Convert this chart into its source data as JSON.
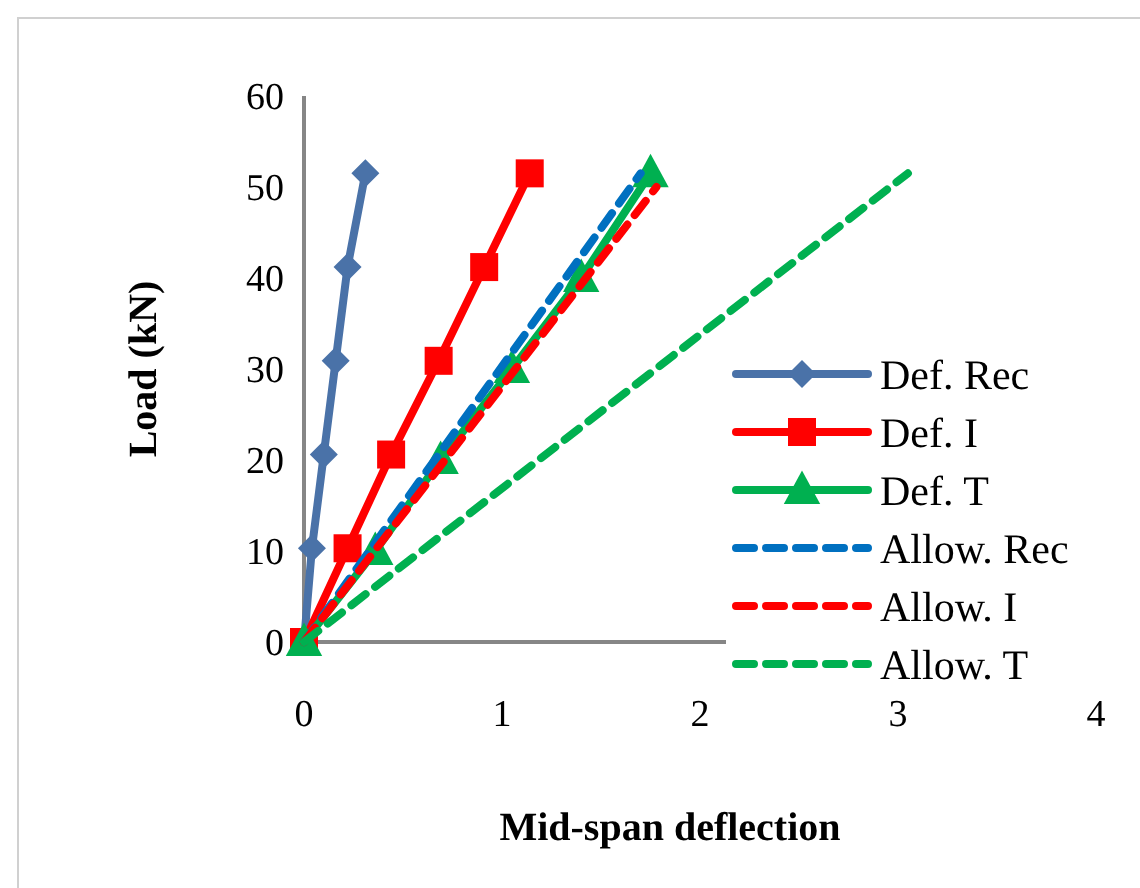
{
  "chart_data": {
    "type": "line",
    "xlabel": "Mid-span deflection",
    "ylabel": "Load (kN)",
    "xlim": [
      0,
      4
    ],
    "xticks": [
      0,
      1,
      2,
      3,
      4
    ],
    "ylim": [
      0,
      60
    ],
    "yticks": [
      0,
      10,
      20,
      30,
      40,
      50,
      60
    ],
    "grid": false,
    "legend": "right",
    "series": [
      {
        "name": "Def. Rec",
        "color": "#4a72a8",
        "marker": "diamond",
        "line_style": "solid",
        "x": [
          0,
          0.04,
          0.1,
          0.16,
          0.22,
          0.31
        ],
        "values": [
          0,
          10.3,
          20.6,
          30.9,
          41.2,
          51.5
        ]
      },
      {
        "name": "Def. I",
        "color": "#ff0000",
        "marker": "square",
        "line_style": "solid",
        "x": [
          0,
          0.22,
          0.44,
          0.68,
          0.91,
          1.14
        ],
        "values": [
          0,
          10.3,
          20.6,
          30.9,
          41.2,
          51.5
        ]
      },
      {
        "name": "Def. T",
        "color": "#00b050",
        "marker": "triangle",
        "line_style": "solid",
        "x": [
          0,
          0.36,
          0.69,
          1.05,
          1.4,
          1.75
        ],
        "values": [
          0,
          10,
          20,
          30,
          40,
          51.5
        ]
      },
      {
        "name": "Allow. Rec",
        "color": "#0070c0",
        "marker": "none",
        "line_style": "dashed",
        "x": [
          0,
          1.7
        ],
        "values": [
          0,
          51.5
        ]
      },
      {
        "name": "Allow. I",
        "color": "#ff0000",
        "marker": "none",
        "line_style": "dashed",
        "x": [
          0,
          1.78
        ],
        "values": [
          0,
          50
        ]
      },
      {
        "name": "Allow. T",
        "color": "#00b050",
        "marker": "none",
        "line_style": "dashed",
        "x": [
          0,
          3.05
        ],
        "values": [
          0,
          51.5
        ]
      }
    ]
  }
}
